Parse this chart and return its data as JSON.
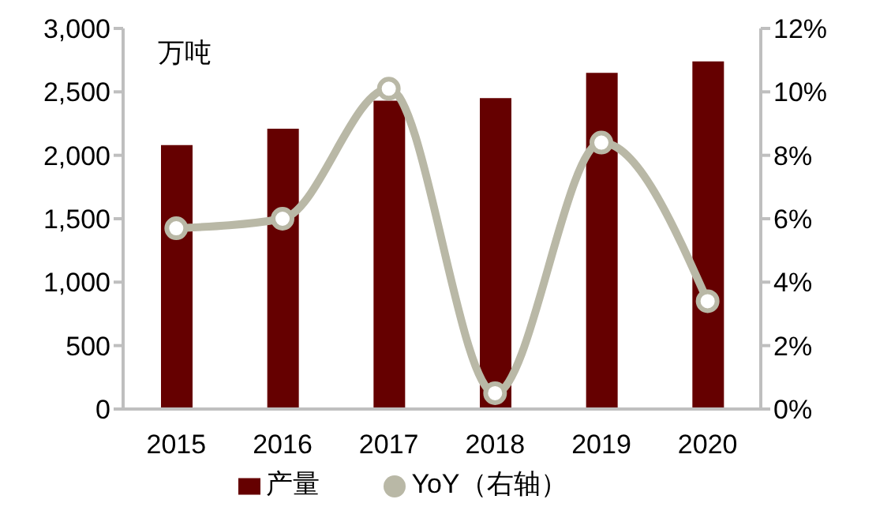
{
  "chart_data": {
    "type": "bar",
    "ylabel": "万吨",
    "categories": [
      "2015",
      "2016",
      "2017",
      "2018",
      "2019",
      "2020"
    ],
    "series": [
      {
        "name": "产量",
        "color": "#650000",
        "values": [
          2080,
          2210,
          2430,
          2450,
          2650,
          2740
        ]
      },
      {
        "name": "YoY（右轴）",
        "type": "line",
        "axis": "y2",
        "color": "#b9b8a6",
        "marker": "circle",
        "line_style": "solid",
        "values": [
          5.7,
          6.0,
          10.1,
          0.5,
          8.4,
          3.4
        ]
      }
    ],
    "ylim": [
      0,
      3000
    ],
    "yticks": [
      0,
      500,
      {
        "value": 1000,
        "label": "1,000"
      },
      {
        "value": 1500,
        "label": "1,500"
      },
      {
        "value": 2000,
        "label": "2,000"
      },
      {
        "value": 2500,
        "label": "2,500"
      },
      {
        "value": 3000,
        "label": "3,000"
      }
    ],
    "y2lim": [
      0,
      12
    ],
    "y2ticks": [
      {
        "value": 0,
        "label": "0%"
      },
      {
        "value": 2,
        "label": "2%"
      },
      {
        "value": 4,
        "label": "4%"
      },
      {
        "value": 6,
        "label": "6%"
      },
      {
        "value": 8,
        "label": "8%"
      },
      {
        "value": 10,
        "label": "10%"
      },
      {
        "value": 12,
        "label": "12%"
      }
    ],
    "grid": false,
    "legend": "bottom"
  }
}
